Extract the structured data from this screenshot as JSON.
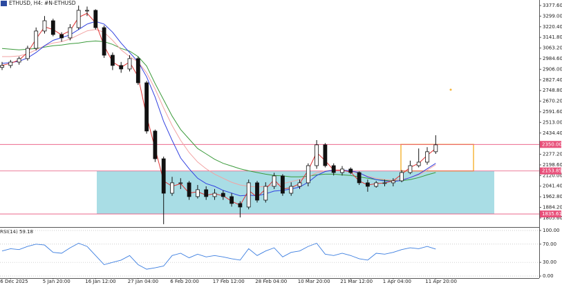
{
  "chart_data": [
    {
      "type": "candlestick",
      "title": "ETHUSD, H4:",
      "subtitle": "#N-ETHUSD",
      "categories": [
        null,
        "6 Dec 2025",
        null,
        null,
        null,
        null,
        "5 Jan 20:00",
        null,
        null,
        null,
        null,
        "16 Jan 12:00",
        null,
        null,
        null,
        null,
        "27 Jan 04:00",
        null,
        null,
        null,
        null,
        "6 Feb 20:00",
        null,
        null,
        null,
        null,
        "17 Feb 12:00",
        null,
        null,
        null,
        null,
        "28 Feb 04:00",
        null,
        null,
        null,
        null,
        "10 Mar 20:00",
        null,
        null,
        null,
        null,
        "21 Mar 12:00",
        null,
        null,
        null,
        null,
        "1 Apr 04:00",
        null,
        null,
        null,
        null,
        "11 Apr 20:00"
      ],
      "open": [
        2920,
        2934,
        2959,
        2985,
        3061,
        3189,
        3265,
        3163,
        3138,
        3214,
        3342,
        3342,
        3214,
        3010,
        2934,
        2908,
        2985,
        2806,
        2449,
        2244,
        1989,
        2066,
        2066,
        1964,
        2015,
        1964,
        1989,
        1964,
        1913,
        1887,
        2066,
        1938,
        2040,
        2117,
        1989,
        2040,
        2066,
        2193,
        2347,
        2193,
        2142,
        2168,
        2142,
        2066,
        2040,
        2066,
        2066,
        2081,
        2142,
        2193,
        2219,
        2296
      ],
      "high": [
        2960,
        2975,
        3000,
        3080,
        3215,
        3300,
        3280,
        3180,
        3240,
        3377,
        3370,
        3350,
        3230,
        3030,
        2960,
        3010,
        3000,
        2820,
        2460,
        2260,
        2110,
        2100,
        2080,
        2050,
        2040,
        2020,
        2010,
        1990,
        1930,
        2090,
        2080,
        2070,
        2140,
        2130,
        2070,
        2090,
        2210,
        2382,
        2360,
        2210,
        2190,
        2180,
        2150,
        2090,
        2080,
        2090,
        2100,
        2160,
        2230,
        2320,
        2330,
        2418
      ],
      "low": [
        2900,
        2915,
        2940,
        2970,
        3045,
        3170,
        3150,
        3110,
        3120,
        3200,
        3300,
        3200,
        2990,
        2900,
        2880,
        2890,
        2790,
        2430,
        2220,
        1760,
        1970,
        2020,
        1940,
        1950,
        1940,
        1940,
        1940,
        1890,
        1810,
        1870,
        1920,
        1920,
        2020,
        1970,
        1970,
        2020,
        2040,
        2170,
        2180,
        2120,
        2120,
        2130,
        2050,
        2000,
        2030,
        2040,
        2040,
        2070,
        2130,
        2180,
        2200,
        2280
      ],
      "close": [
        2934,
        2959,
        2985,
        3061,
        3189,
        3265,
        3163,
        3138,
        3214,
        3342,
        3342,
        3214,
        3010,
        2934,
        2908,
        2985,
        2806,
        2449,
        2244,
        1989,
        2066,
        2066,
        1964,
        2015,
        1964,
        1989,
        1964,
        1913,
        1887,
        2066,
        1938,
        2040,
        2117,
        1989,
        2040,
        2066,
        2193,
        2347,
        2193,
        2142,
        2168,
        2142,
        2066,
        2040,
        2066,
        2066,
        2081,
        2142,
        2193,
        2219,
        2296,
        2347
      ],
      "series": [
        {
          "color": "#3a9a3a",
          "values": [
            3060,
            3055,
            3050,
            3055,
            3060,
            3070,
            3080,
            3085,
            3095,
            3100,
            3110,
            3115,
            3110,
            3090,
            3060,
            3040,
            3000,
            2930,
            2800,
            2680,
            2560,
            2460,
            2390,
            2320,
            2280,
            2240,
            2210,
            2190,
            2170,
            2155,
            2142,
            2130,
            2120,
            2117,
            2110,
            2110,
            2115,
            2125,
            2130,
            2130,
            2125,
            2120,
            2110,
            2100,
            2090,
            2085,
            2080,
            2082,
            2090,
            2105,
            2125,
            2142
          ]
        },
        {
          "color": "#f2a2a2",
          "values": [
            3000,
            3000,
            3005,
            3020,
            3050,
            3080,
            3100,
            3110,
            3130,
            3160,
            3190,
            3200,
            3180,
            3120,
            3050,
            3000,
            2960,
            2880,
            2760,
            2620,
            2490,
            2380,
            2290,
            2220,
            2170,
            2130,
            2100,
            2070,
            2050,
            2040,
            2035,
            2040,
            2050,
            2060,
            2075,
            2090,
            2110,
            2140,
            2155,
            2160,
            2160,
            2150,
            2135,
            2115,
            2100,
            2090,
            2085,
            2090,
            2105,
            2125,
            2160,
            2200
          ]
        },
        {
          "color": "#3040e0",
          "values": [
            2950,
            2955,
            2965,
            2990,
            3030,
            3080,
            3120,
            3140,
            3160,
            3200,
            3240,
            3260,
            3240,
            3180,
            3100,
            3030,
            2960,
            2850,
            2700,
            2520,
            2380,
            2250,
            2170,
            2100,
            2060,
            2040,
            2010,
            1990,
            1970,
            1975,
            1970,
            1985,
            2005,
            2010,
            2020,
            2035,
            2070,
            2120,
            2150,
            2160,
            2160,
            2155,
            2140,
            2110,
            2090,
            2080,
            2075,
            2085,
            2105,
            2130,
            2170,
            2210
          ]
        },
        {
          "color": "#e03030",
          "values": [
            2935,
            2950,
            2975,
            3030,
            3130,
            3220,
            3200,
            3160,
            3190,
            3290,
            3320,
            3250,
            3080,
            2960,
            2920,
            2960,
            2850,
            2560,
            2320,
            2080,
            2040,
            2060,
            1990,
            2000,
            1975,
            1985,
            1970,
            1930,
            1900,
            2010,
            1960,
            2020,
            2090,
            2020,
            2030,
            2060,
            2160,
            2290,
            2230,
            2160,
            2160,
            2145,
            2080,
            2050,
            2060,
            2065,
            2080,
            2130,
            2180,
            2210,
            2270,
            2320
          ]
        }
      ],
      "zones": [
        {
          "from": 1835.61,
          "to": 2153.85,
          "color": "#a9dde5"
        },
        {
          "from": 2153.85,
          "to": 2350,
          "color": "#f5b63c"
        }
      ],
      "levels": [
        {
          "value": 2350,
          "label": "2350.00",
          "color": "#e8507a"
        },
        {
          "value": 2153.85,
          "label": "2153.85",
          "color": "#e8507a"
        },
        {
          "value": 1835.61,
          "label": "1835.61",
          "color": "#e8507a"
        }
      ],
      "ylim": [
        1744,
        3418.4
      ],
      "yticks": [
        {
          "value": 3377.6,
          "label": "3377.60"
        },
        {
          "value": 3299,
          "label": "3299.00"
        },
        {
          "value": 3220.4,
          "label": "3220.40"
        },
        {
          "value": 3141.8,
          "label": "3141.80"
        },
        {
          "value": 3063.2,
          "label": "3063.20"
        },
        {
          "value": 2984.6,
          "label": "2984.60"
        },
        {
          "value": 2906,
          "label": "2906.00"
        },
        {
          "value": 2827.4,
          "label": "2827.40"
        },
        {
          "value": 2748.8,
          "label": "2748.80"
        },
        {
          "value": 2670.2,
          "label": "2670.20"
        },
        {
          "value": 2591.6,
          "label": "2591.60"
        },
        {
          "value": 2513,
          "label": "2513.00"
        },
        {
          "value": 2434.4,
          "label": "2434.40"
        },
        {
          "value": 2277.2,
          "label": "2277.20"
        },
        {
          "value": 2198.6,
          "label": "2198.60"
        },
        {
          "value": 2120,
          "label": "2120.00"
        },
        {
          "value": 2041.4,
          "label": "2041.40"
        },
        {
          "value": 1962.8,
          "label": "1962.80"
        },
        {
          "value": 1884.2,
          "label": "1884.20"
        },
        {
          "value": 1805.6,
          "label": "1805.60"
        }
      ],
      "grid": false
    },
    {
      "type": "line",
      "title": "RSI(14) 59.18",
      "color": "#3a7de0",
      "values": [
        55,
        60,
        58,
        65,
        70,
        68,
        52,
        50,
        62,
        72,
        65,
        45,
        25,
        30,
        35,
        45,
        25,
        15,
        18,
        22,
        45,
        50,
        40,
        48,
        42,
        45,
        42,
        38,
        35,
        60,
        45,
        55,
        62,
        42,
        52,
        55,
        65,
        72,
        48,
        45,
        50,
        45,
        38,
        35,
        50,
        48,
        52,
        58,
        62,
        60,
        65,
        59.18
      ],
      "ylim": [
        -4.5,
        106
      ],
      "yticks": [
        {
          "value": 100,
          "label": "100.00"
        },
        {
          "value": 70,
          "label": "70.00"
        },
        {
          "value": 30,
          "label": "30.00"
        },
        {
          "value": 0,
          "label": "0.00"
        }
      ],
      "grid": true
    }
  ]
}
